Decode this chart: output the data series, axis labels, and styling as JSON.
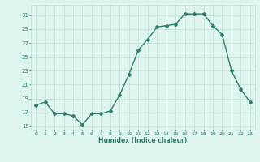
{
  "x": [
    0,
    1,
    2,
    3,
    4,
    5,
    6,
    7,
    8,
    9,
    10,
    11,
    12,
    13,
    14,
    15,
    16,
    17,
    18,
    19,
    20,
    21,
    22,
    23
  ],
  "y": [
    18,
    18.5,
    16.8,
    16.8,
    16.5,
    15.2,
    16.8,
    16.8,
    17.2,
    19.5,
    22.5,
    26.0,
    27.5,
    29.3,
    29.5,
    29.7,
    31.2,
    31.2,
    31.2,
    29.5,
    28.2,
    23.0,
    20.3,
    18.5
  ],
  "xlabel": "Humidex (Indice chaleur)",
  "ylim": [
    14.5,
    32.5
  ],
  "xlim": [
    -0.5,
    23.5
  ],
  "yticks": [
    15,
    17,
    19,
    21,
    23,
    25,
    27,
    29,
    31
  ],
  "xticks": [
    0,
    1,
    2,
    3,
    4,
    5,
    6,
    7,
    8,
    9,
    10,
    11,
    12,
    13,
    14,
    15,
    16,
    17,
    18,
    19,
    20,
    21,
    22,
    23
  ],
  "line_color": "#2d7d6e",
  "bg_color": "#dff5f0",
  "grid_color": "#c0ddd8",
  "marker": "D",
  "marker_size": 2.0,
  "line_width": 1.0
}
